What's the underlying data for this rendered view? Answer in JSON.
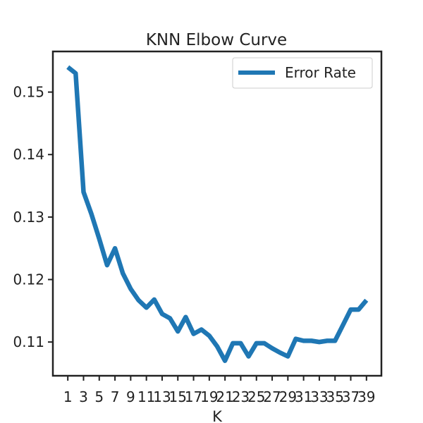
{
  "chart_data": {
    "type": "line",
    "title": "KNN Elbow Curve",
    "xlabel": "K",
    "ylabel": "",
    "xlim": [
      -0.9,
      40.9
    ],
    "ylim": [
      0.1046,
      0.1565
    ],
    "xticks": [
      1,
      3,
      5,
      7,
      9,
      11,
      13,
      15,
      17,
      19,
      21,
      23,
      25,
      27,
      29,
      31,
      33,
      35,
      37,
      39
    ],
    "yticks": [
      0.11,
      0.12,
      0.13,
      0.14,
      0.15
    ],
    "ytick_labels": [
      "0.11",
      "0.12",
      "0.13",
      "0.14",
      "0.15"
    ],
    "legend_position": "top-right",
    "grid": false,
    "series": [
      {
        "name": "Error Rate",
        "color": "#1f77b4",
        "x": [
          1,
          2,
          3,
          4,
          5,
          6,
          7,
          8,
          9,
          10,
          11,
          12,
          13,
          14,
          15,
          16,
          17,
          18,
          19,
          20,
          21,
          22,
          23,
          24,
          25,
          26,
          27,
          28,
          29,
          30,
          31,
          32,
          33,
          34,
          35,
          36,
          37,
          38,
          39
        ],
        "y": [
          0.154,
          0.153,
          0.134,
          0.1305,
          0.1265,
          0.1223,
          0.125,
          0.121,
          0.1185,
          0.1167,
          0.1155,
          0.1168,
          0.1145,
          0.1138,
          0.1117,
          0.114,
          0.1113,
          0.112,
          0.111,
          0.1093,
          0.107,
          0.1098,
          0.1098,
          0.1077,
          0.1098,
          0.1098,
          0.109,
          0.1083,
          0.1077,
          0.1105,
          0.1102,
          0.1102,
          0.11,
          0.1102,
          0.1102,
          0.1127,
          0.1152,
          0.1152,
          0.1167
        ]
      }
    ]
  }
}
